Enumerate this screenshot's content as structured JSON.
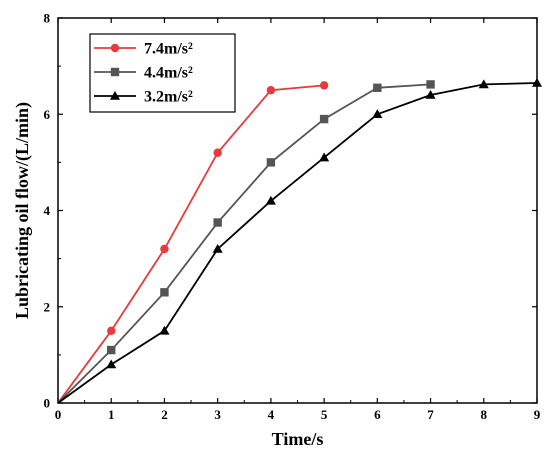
{
  "chart_data": {
    "type": "line",
    "title": "",
    "xlabel": "Time/s",
    "ylabel": "Lubricating oil flow/(L/min)",
    "xlim": [
      0,
      9
    ],
    "ylim": [
      0,
      8
    ],
    "xticks": [
      0,
      1,
      2,
      3,
      4,
      5,
      6,
      7,
      8,
      9
    ],
    "yticks": [
      0,
      2,
      4,
      6,
      8
    ],
    "grid": false,
    "legend_position": "top-left",
    "series": [
      {
        "name": "7.4m/s²",
        "color": "#e8393b",
        "marker": "circle",
        "x": [
          0,
          1,
          2,
          3,
          4,
          5
        ],
        "y": [
          0,
          1.5,
          3.2,
          5.2,
          6.5,
          6.6
        ]
      },
      {
        "name": "4.4m/s²",
        "color": "#555555",
        "marker": "square",
        "x": [
          0,
          1,
          2,
          3,
          4,
          5,
          6,
          7
        ],
        "y": [
          0,
          1.1,
          2.3,
          3.75,
          5.0,
          5.9,
          6.55,
          6.62
        ]
      },
      {
        "name": "3.2m/s²",
        "color": "#000000",
        "marker": "triangle",
        "x": [
          0,
          1,
          2,
          3,
          4,
          5,
          6,
          7,
          8,
          9
        ],
        "y": [
          0,
          0.8,
          1.5,
          3.2,
          4.2,
          5.1,
          6.0,
          6.4,
          6.62,
          6.65
        ]
      }
    ]
  }
}
